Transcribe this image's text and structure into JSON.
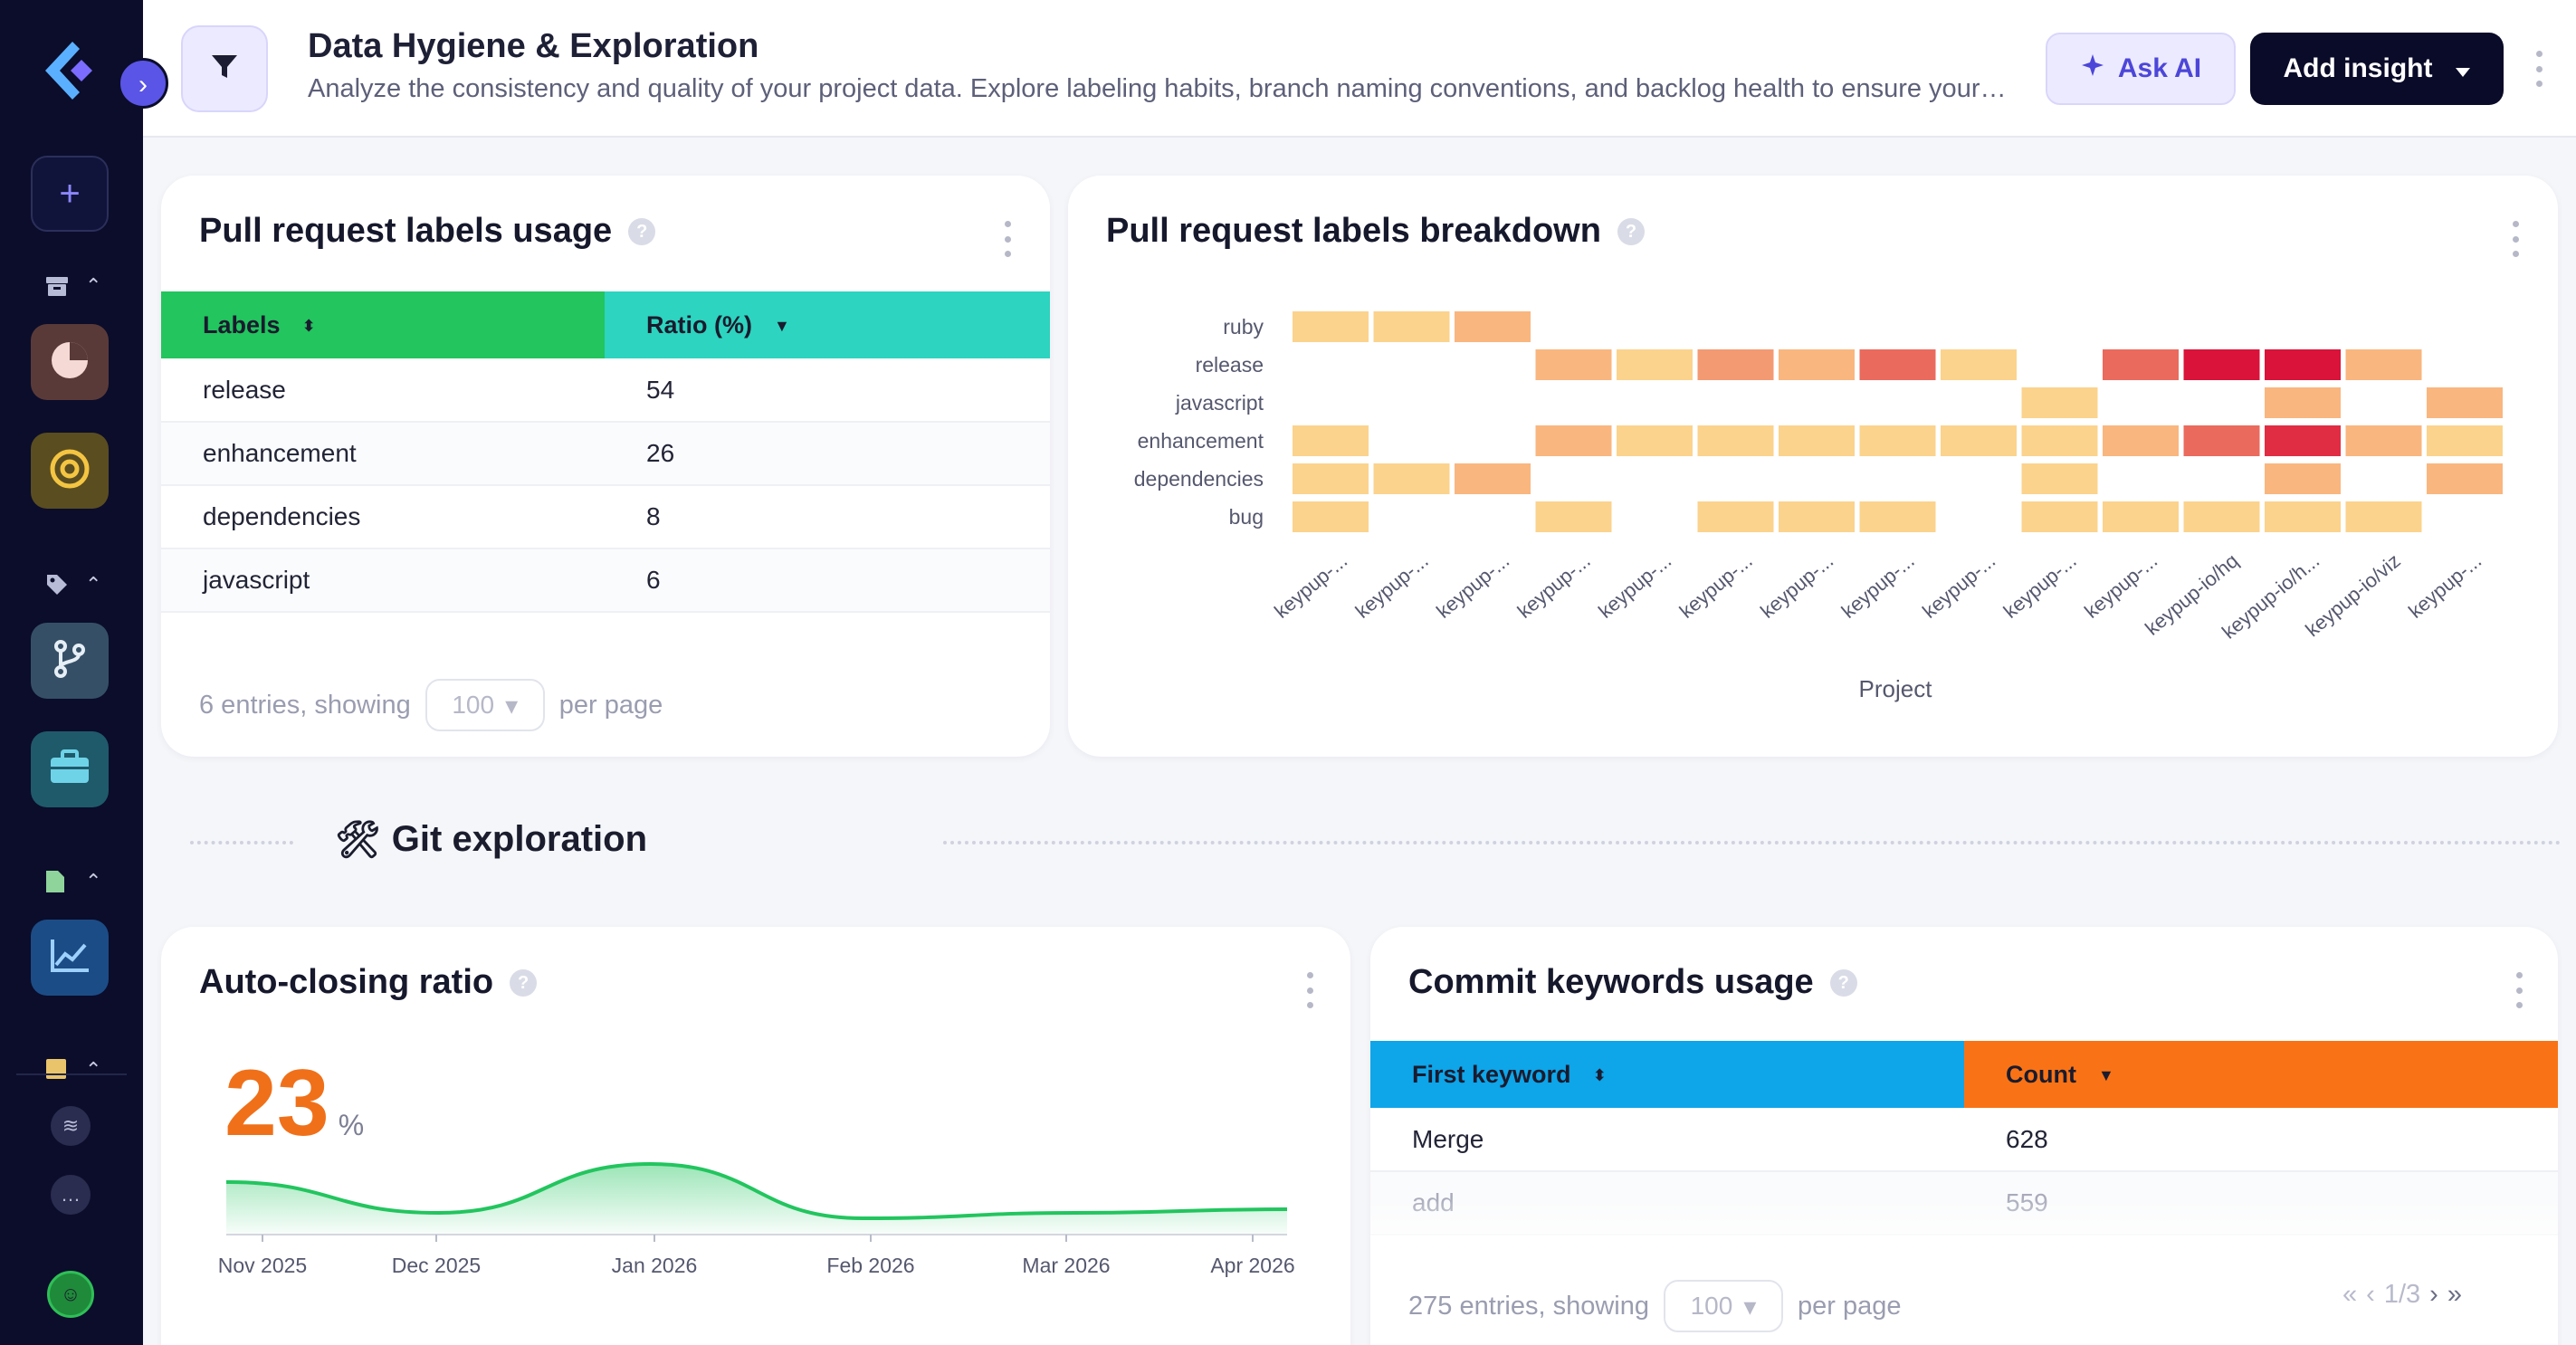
{
  "header": {
    "title": "Data Hygiene & Exploration",
    "subtitle": "Analyze the consistency and quality of your project data. Explore labeling habits, branch naming conventions, and backlog health to ensure your …",
    "ask_ai": "Ask AI",
    "add_insight": "Add insight"
  },
  "labels_card": {
    "title": "Pull request labels usage",
    "columns": [
      "Labels",
      "Ratio (%)"
    ],
    "rows": [
      [
        "release",
        "54"
      ],
      [
        "enhancement",
        "26"
      ],
      [
        "dependencies",
        "8"
      ],
      [
        "javascript",
        "6"
      ]
    ],
    "footer_prefix": "6 entries, showing",
    "per_page_value": "100",
    "footer_suffix": "per page",
    "header_colors": [
      "#22c55e",
      "#2dd4bf"
    ]
  },
  "breakdown_card": {
    "title": "Pull request labels breakdown",
    "xlabel": "Project",
    "chart_data": {
      "type": "heatmap",
      "rows": [
        "ruby",
        "release",
        "javascript",
        "enhancement",
        "dependencies",
        "bug"
      ],
      "columns": [
        "keypup-...",
        "keypup-...",
        "keypup-...",
        "keypup-...",
        "keypup-...",
        "keypup-...",
        "keypup-...",
        "keypup-...",
        "keypup-...",
        "keypup-...",
        "keypup-...",
        "keypup-io/hq",
        "keypup-io/h...",
        "keypup-io/viz",
        "keypup-..."
      ],
      "values": [
        [
          2,
          2,
          3,
          0,
          0,
          0,
          0,
          0,
          0,
          0,
          0,
          0,
          0,
          0,
          0
        ],
        [
          0,
          0,
          0,
          3,
          2,
          4,
          3,
          5,
          2,
          0,
          5,
          7,
          8,
          3,
          0
        ],
        [
          0,
          0,
          0,
          0,
          0,
          0,
          0,
          0,
          0,
          2,
          0,
          0,
          3,
          0,
          3
        ],
        [
          2,
          0,
          0,
          3,
          2,
          2,
          2,
          2,
          2,
          2,
          3,
          5,
          6,
          3,
          2
        ],
        [
          2,
          2,
          3,
          0,
          0,
          0,
          0,
          0,
          0,
          2,
          0,
          0,
          3,
          0,
          3
        ],
        [
          2,
          0,
          0,
          2,
          0,
          2,
          2,
          2,
          0,
          2,
          2,
          2,
          2,
          2,
          0
        ]
      ],
      "color_scale": [
        "#fde7a3",
        "#fbd38d",
        "#f9b67f",
        "#f39a73",
        "#ea6a5e",
        "#e02d43",
        "#d9133a"
      ]
    }
  },
  "section": {
    "emoji": "🛠",
    "title": "Git exploration"
  },
  "autoclose_card": {
    "title": "Auto-closing ratio",
    "value": "23",
    "unit": "%",
    "chart_data": {
      "type": "area",
      "x": [
        "Nov 2025",
        "Dec 2025",
        "Jan 2026",
        "Feb 2026",
        "Mar 2026",
        "Apr 2026"
      ],
      "values": [
        25,
        8,
        35,
        5,
        8,
        10
      ],
      "color": "#22c55e"
    }
  },
  "keywords_card": {
    "title": "Commit keywords usage",
    "columns": [
      "First keyword",
      "Count"
    ],
    "rows": [
      [
        "Merge",
        "628"
      ],
      [
        "add",
        "559"
      ]
    ],
    "footer_prefix": "275 entries, showing",
    "per_page_value": "100",
    "footer_suffix": "per page",
    "page": "1/3",
    "header_colors": [
      "#0ea5e9",
      "#f97316"
    ]
  }
}
